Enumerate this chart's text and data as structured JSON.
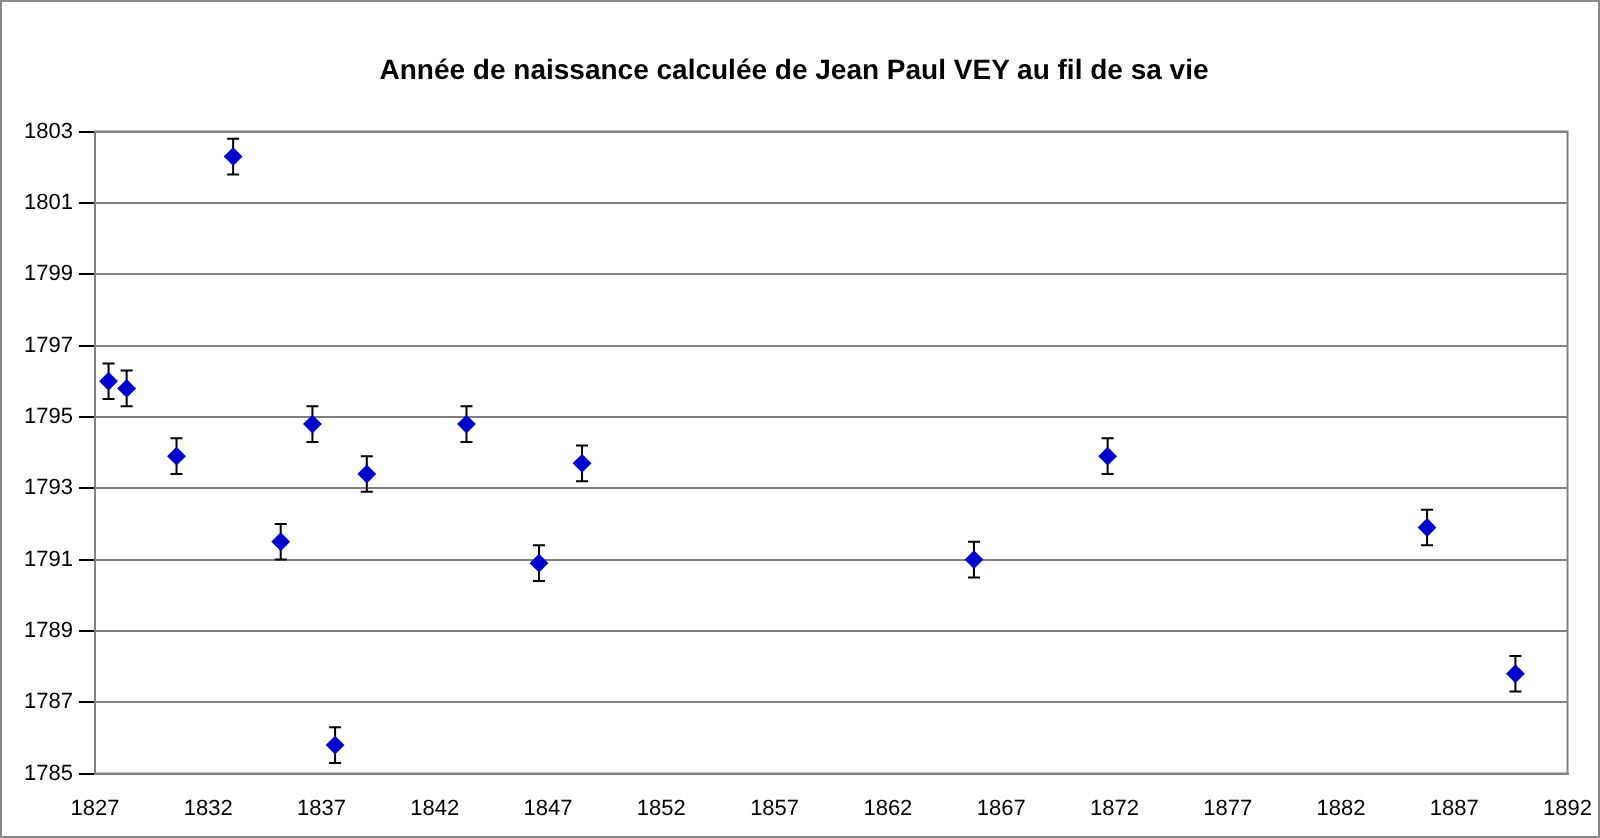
{
  "chart_data": {
    "type": "scatter",
    "title": "Année de naissance calculée de Jean Paul VEY au fil de sa vie",
    "x": [
      1827.6,
      1828.4,
      1830.6,
      1833.1,
      1835.2,
      1836.6,
      1837.6,
      1839.0,
      1843.4,
      1846.6,
      1848.5,
      1865.8,
      1871.7,
      1885.8,
      1889.7
    ],
    "values": [
      1796.0,
      1795.8,
      1793.9,
      1802.3,
      1791.5,
      1794.8,
      1785.8,
      1793.4,
      1794.8,
      1790.9,
      1793.7,
      1791.0,
      1793.9,
      1791.9,
      1787.8
    ],
    "errors": [
      0.5,
      0.5,
      0.5,
      0.5,
      0.5,
      0.5,
      0.5,
      0.5,
      0.5,
      0.5,
      0.5,
      0.5,
      0.5,
      0.5,
      0.5
    ],
    "color": "#0000cc",
    "marker": "diamond",
    "xlim": [
      1827,
      1892
    ],
    "xticks": [
      1827,
      1832,
      1837,
      1842,
      1847,
      1852,
      1857,
      1862,
      1867,
      1872,
      1877,
      1882,
      1887,
      1892
    ],
    "ylim": [
      1785,
      1803
    ],
    "yticks": [
      1785,
      1787,
      1789,
      1791,
      1793,
      1795,
      1797,
      1799,
      1801,
      1803
    ],
    "grid": "y",
    "legend": false
  }
}
